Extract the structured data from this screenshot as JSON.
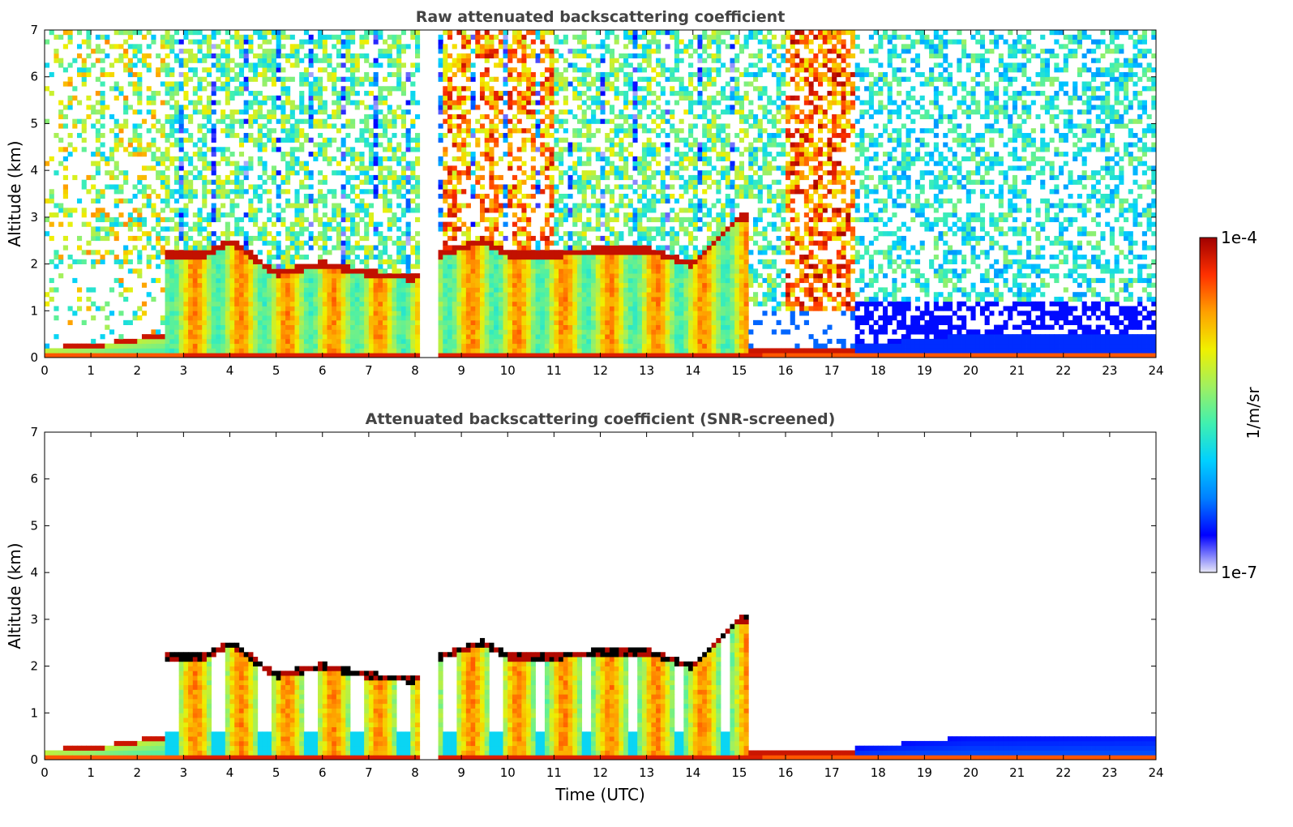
{
  "chart_data": [
    {
      "type": "heatmap",
      "title": "Raw attenuated backscattering coefficient",
      "xlabel": "",
      "ylabel": "Altitude (km)",
      "xlim": [
        0,
        24
      ],
      "ylim": [
        0,
        7
      ],
      "xticks": [
        0,
        1,
        2,
        3,
        4,
        5,
        6,
        7,
        8,
        9,
        10,
        11,
        12,
        13,
        14,
        15,
        16,
        17,
        18,
        19,
        20,
        21,
        22,
        23,
        24
      ],
      "yticks": [
        0,
        1,
        2,
        3,
        4,
        5,
        6,
        7
      ],
      "data_gaps_utc": [
        [
          8.05,
          8.5
        ]
      ],
      "cloud_layer_km": [
        [
          0,
          0.15
        ],
        [
          1,
          0.2
        ],
        [
          2,
          0.35
        ],
        [
          2.5,
          2.2
        ],
        [
          3.5,
          2.2
        ],
        [
          4,
          2.5
        ],
        [
          5,
          1.8
        ],
        [
          6,
          2.0
        ],
        [
          7,
          1.8
        ],
        [
          8,
          1.7
        ],
        [
          8.5,
          2.2
        ],
        [
          9.5,
          2.5
        ],
        [
          10,
          2.2
        ],
        [
          11,
          2.2
        ],
        [
          12,
          2.3
        ],
        [
          13,
          2.3
        ],
        [
          14,
          2.0
        ],
        [
          14.5,
          2.5
        ],
        [
          15,
          3.0
        ]
      ]
    },
    {
      "type": "heatmap",
      "title": "Attenuated backscattering coefficient (SNR-screened)",
      "xlabel": "Time (UTC)",
      "ylabel": "Altitude (km)",
      "xlim": [
        0,
        24
      ],
      "ylim": [
        0,
        7
      ],
      "xticks": [
        0,
        1,
        2,
        3,
        4,
        5,
        6,
        7,
        8,
        9,
        10,
        11,
        12,
        13,
        14,
        15,
        16,
        17,
        18,
        19,
        20,
        21,
        22,
        23,
        24
      ],
      "yticks": [
        0,
        1,
        2,
        3,
        4,
        5,
        6,
        7
      ]
    }
  ],
  "colorbar": {
    "label": "1/m/sr",
    "max_label": "1e-4",
    "min_label": "1e-7",
    "scale": "log",
    "range": [
      1e-07,
      0.0001
    ],
    "colormap": [
      "#e8e8f8",
      "#0000ff",
      "#0080ff",
      "#00d0ff",
      "#40f0b0",
      "#a0f060",
      "#f0f000",
      "#ffa000",
      "#ff3000",
      "#a00000"
    ]
  }
}
